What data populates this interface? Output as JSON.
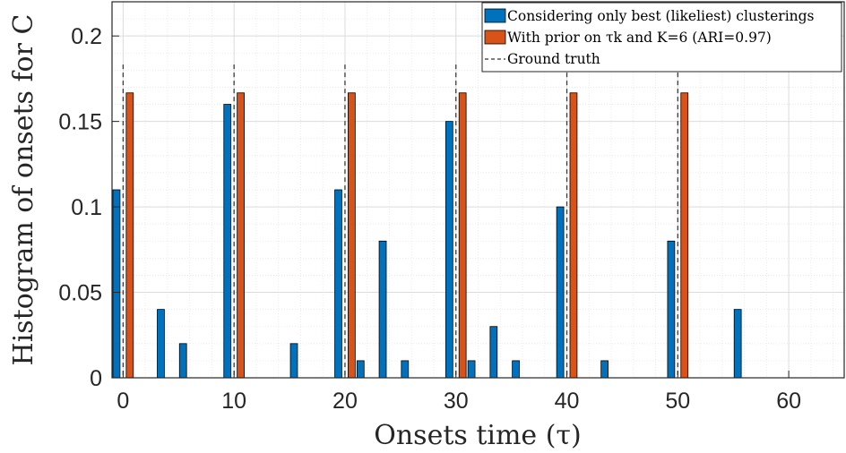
{
  "chart_data": {
    "type": "bar",
    "xlabel": "Onsets time (τ)",
    "ylabel": "Histogram of onsets for C",
    "xlim": [
      -1,
      65
    ],
    "ylim": [
      0,
      0.22
    ],
    "xticks": [
      0,
      10,
      20,
      30,
      40,
      50,
      60
    ],
    "xtick_labels": [
      "0",
      "10",
      "20",
      "30",
      "40",
      "50",
      "60"
    ],
    "yticks": [
      0,
      0.05,
      0.1,
      0.15,
      0.2
    ],
    "ytick_labels": [
      "0",
      "0.05",
      "0.1",
      "0.15",
      "0.2"
    ],
    "grid": true,
    "legend_position": "top-right",
    "x": [
      0,
      2,
      4,
      6,
      8,
      10,
      12,
      14,
      16,
      18,
      20,
      22,
      24,
      26,
      28,
      30,
      32,
      34,
      36,
      38,
      40,
      42,
      44,
      46,
      48,
      50,
      52,
      54,
      56,
      58,
      60
    ],
    "series": [
      {
        "name": "Considering only best (likeliest) clusterings",
        "color": "#0072BD",
        "values": [
          0.11,
          0,
          0.04,
          0.02,
          0,
          0.16,
          0,
          0,
          0.02,
          0,
          0.11,
          0.01,
          0.08,
          0.01,
          0,
          0.15,
          0.01,
          0.03,
          0.01,
          0,
          0.1,
          0,
          0.01,
          0,
          0,
          0.08,
          0,
          0,
          0.04,
          0,
          0
        ]
      },
      {
        "name": "With prior on τk and K=6 (ARI=0.97)",
        "color": "#D95319",
        "values": [
          0.1667,
          0,
          0,
          0,
          0,
          0.1667,
          0,
          0,
          0,
          0,
          0.1667,
          0,
          0,
          0,
          0,
          0.1667,
          0,
          0,
          0,
          0,
          0.1667,
          0,
          0,
          0,
          0,
          0.1667,
          0,
          0,
          0,
          0,
          0
        ]
      }
    ],
    "ground_truth": {
      "name": "Ground truth",
      "x": [
        0,
        10,
        20,
        30,
        40,
        50
      ],
      "y": 0.1833
    }
  }
}
